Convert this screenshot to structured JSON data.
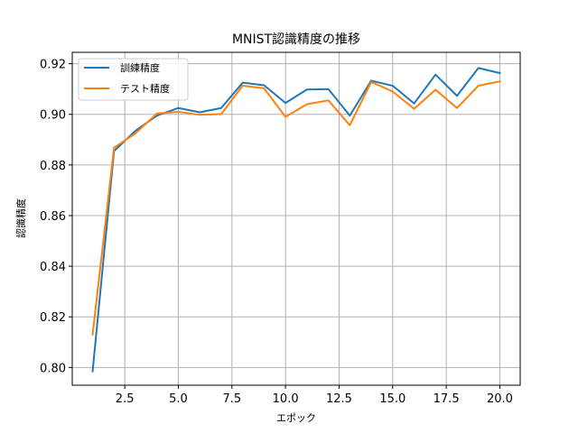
{
  "chart_data": {
    "type": "line",
    "title": "MNIST認識精度の推移",
    "xlabel": "エポック",
    "ylabel": "認識精度",
    "xlim": [
      0.05,
      20.95
    ],
    "ylim": [
      0.793,
      0.9245
    ],
    "xticks": [
      2.5,
      5.0,
      7.5,
      10.0,
      12.5,
      15.0,
      17.5,
      20.0
    ],
    "xtick_labels": [
      "2.5",
      "5.0",
      "7.5",
      "10.0",
      "12.5",
      "15.0",
      "17.5",
      "20.0"
    ],
    "yticks": [
      0.8,
      0.82,
      0.84,
      0.86,
      0.88,
      0.9,
      0.92
    ],
    "ytick_labels": [
      "0.80",
      "0.82",
      "0.84",
      "0.86",
      "0.88",
      "0.90",
      "0.92"
    ],
    "grid": true,
    "legend_position": "top-left",
    "x": [
      1,
      2,
      3,
      4,
      5,
      6,
      7,
      8,
      9,
      10,
      11,
      12,
      13,
      14,
      15,
      16,
      17,
      18,
      19,
      20
    ],
    "series": [
      {
        "name": "訓練精度",
        "color": "#1f77b4",
        "values": [
          0.7985,
          0.8855,
          0.8935,
          0.8995,
          0.9025,
          0.9008,
          0.9025,
          0.9125,
          0.9115,
          0.9045,
          0.9098,
          0.91,
          0.8995,
          0.9133,
          0.9113,
          0.9043,
          0.9157,
          0.9073,
          0.9183,
          0.9163
        ]
      },
      {
        "name": "テスト精度",
        "color": "#ff7f0e",
        "values": [
          0.813,
          0.8868,
          0.8925,
          0.9003,
          0.901,
          0.8998,
          0.9001,
          0.9113,
          0.9103,
          0.899,
          0.904,
          0.9055,
          0.8957,
          0.9128,
          0.909,
          0.9022,
          0.9097,
          0.9025,
          0.9113,
          0.913
        ]
      }
    ]
  }
}
